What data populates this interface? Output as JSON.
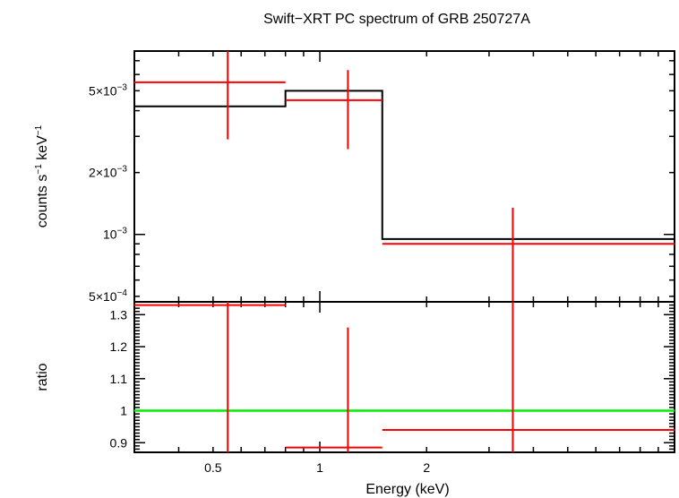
{
  "chart_data": [
    {
      "type": "line",
      "panel": "spectrum",
      "title": "Swift−XRT PC spectrum of GRB 250727A",
      "ylabel": {
        "base": "counts s",
        "sup1": "−1",
        "mid": " keV",
        "sup2": "−1"
      },
      "xlabel": "",
      "xscale": "log",
      "yscale": "log",
      "xlim": [
        0.3,
        10
      ],
      "ylim": [
        0.00047,
        0.0078
      ],
      "ytick_values": [
        0.0005,
        0.001,
        0.002,
        0.005
      ],
      "ytick_labels": [
        {
          "mant": "5×10",
          "exp": "−4"
        },
        {
          "mant": "10",
          "exp": "−3"
        },
        {
          "mant": "2×10",
          "exp": "−3"
        },
        {
          "mant": "5×10",
          "exp": "−3"
        }
      ],
      "series": [
        {
          "kind": "model-step",
          "color": "#000000",
          "steps": [
            {
              "x0": 0.3,
              "x1": 0.8,
              "y": 0.0042
            },
            {
              "x0": 0.8,
              "x1": 1.5,
              "y": 0.005
            },
            {
              "x0": 1.5,
              "x1": 10,
              "y": 0.00095
            }
          ]
        },
        {
          "kind": "data-errorbars",
          "color": "#ff0000",
          "points": [
            {
              "x0": 0.3,
              "x1": 0.8,
              "xc": 0.55,
              "y": 0.0055,
              "ylo": 0.0029,
              "yhi": 0.0078
            },
            {
              "x0": 0.8,
              "x1": 1.5,
              "xc": 1.2,
              "y": 0.0045,
              "ylo": 0.0026,
              "yhi": 0.0063
            },
            {
              "x0": 1.5,
              "x1": 10,
              "xc": 3.5,
              "y": 0.0009,
              "ylo": 0.00047,
              "yhi": 0.00135
            }
          ]
        }
      ]
    },
    {
      "type": "line",
      "panel": "ratio",
      "xlabel": "Energy (keV)",
      "ylabel": "ratio",
      "xscale": "log",
      "yscale": "linear",
      "xlim": [
        0.3,
        10
      ],
      "ylim": [
        0.87,
        1.34
      ],
      "xtick_values": [
        0.5,
        1,
        2
      ],
      "xtick_labels": [
        "0.5",
        "1",
        "2"
      ],
      "ytick_values": [
        0.9,
        1.0,
        1.1,
        1.2,
        1.3
      ],
      "ytick_labels": [
        "0.9",
        "1",
        "1.1",
        "1.2",
        "1.3"
      ],
      "series": [
        {
          "kind": "reference-line",
          "color": "#00ee00",
          "y": 1.0
        },
        {
          "kind": "data-errorbars",
          "color": "#ff0000",
          "points": [
            {
              "x0": 0.3,
              "x1": 0.8,
              "xc": 0.55,
              "y": 1.33,
              "ylo": 0.87,
              "yhi": 1.34
            },
            {
              "x0": 0.8,
              "x1": 1.5,
              "xc": 1.2,
              "y": 0.885,
              "ylo": 0.87,
              "yhi": 1.26
            },
            {
              "x0": 1.5,
              "x1": 10,
              "xc": 3.5,
              "y": 0.94,
              "ylo": 0.87,
              "yhi": 1.34
            }
          ]
        }
      ]
    }
  ]
}
